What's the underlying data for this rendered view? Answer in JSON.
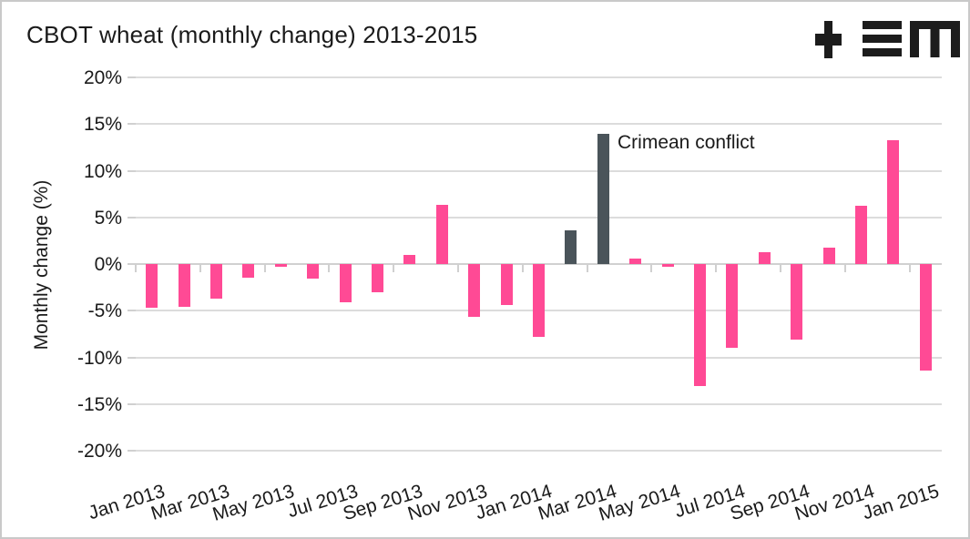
{
  "header": {
    "title": "CBOT wheat (monthly change) 2013-2015",
    "logo_alt": "+ ≡ M"
  },
  "chart_data": {
    "type": "bar",
    "title": "CBOT wheat (monthly change) 2013-2015",
    "xlabel": "",
    "ylabel": "Monthly change (%)",
    "ylim": [
      -20,
      20
    ],
    "grid": true,
    "categories": [
      "Jan 2013",
      "Feb 2013",
      "Mar 2013",
      "Apr 2013",
      "May 2013",
      "Jun 2013",
      "Jul 2013",
      "Aug 2013",
      "Sep 2013",
      "Oct 2013",
      "Nov 2013",
      "Dec 2013",
      "Jan 2014",
      "Feb 2014",
      "Mar 2014",
      "Apr 2014",
      "May 2014",
      "Jun 2014",
      "Jul 2014",
      "Aug 2014",
      "Sep 2014",
      "Oct 2014",
      "Nov 2014",
      "Dec 2014",
      "Jan 2015"
    ],
    "values": [
      -4.7,
      -4.6,
      -3.7,
      -1.5,
      -0.3,
      -1.6,
      -4.1,
      -3.0,
      1.0,
      6.3,
      -5.7,
      -4.4,
      -7.8,
      3.6,
      14.0,
      0.6,
      -0.3,
      -13.1,
      -9.0,
      1.3,
      -8.1,
      1.8,
      6.2,
      13.3,
      -11.4
    ],
    "highlight": {
      "indices": [
        13,
        14
      ],
      "label": "Crimean conflict"
    },
    "annotation": {
      "text": "Crimean conflict"
    },
    "ytick_values": [
      20,
      15,
      10,
      5,
      0,
      -5,
      -10,
      -15,
      -20
    ],
    "ytick_labels": [
      "20%",
      "15%",
      "10%",
      "5%",
      "0%",
      "-5%",
      "-10%",
      "-15%",
      "-20%"
    ],
    "xtick_labels": [
      "Jan 2013",
      "Mar 2013",
      "May 2013",
      "Jul 2013",
      "Sep 2013",
      "Nov 2013",
      "Jan 2014",
      "Mar 2014",
      "May 2014",
      "Jul 2014",
      "Sep 2014",
      "Nov 2014",
      "Jan 2015"
    ],
    "colors": {
      "bar": "#ff4a95",
      "highlight_bar": "#4a545a",
      "grid": "#dcdcdc",
      "axis": "#d0d0d0",
      "text": "#1a1a1a"
    }
  }
}
